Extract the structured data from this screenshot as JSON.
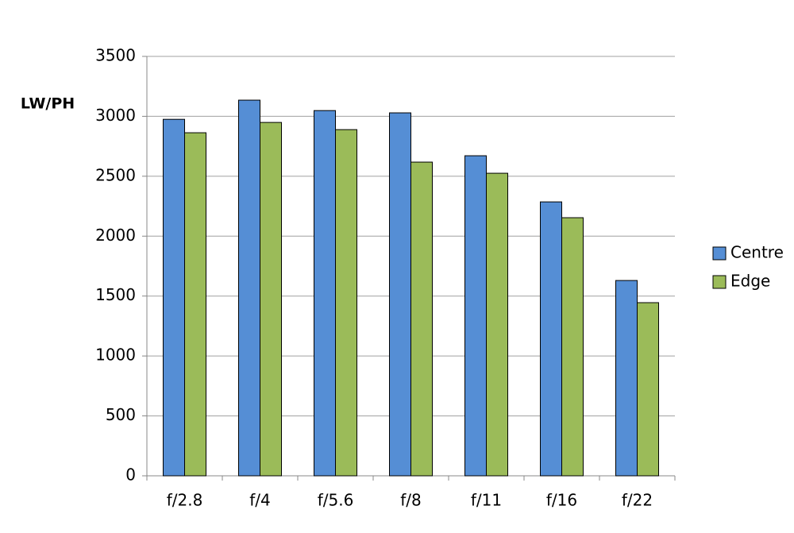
{
  "chart_data": {
    "type": "bar",
    "y_label": "LW/PH",
    "categories": [
      "f/2.8",
      "f/4",
      "f/5.6",
      "f/8",
      "f/11",
      "f/16",
      "f/22"
    ],
    "series": [
      {
        "name": "Centre",
        "color": "#558ed5",
        "values": [
          2975,
          3135,
          3048,
          3029,
          2671,
          2286,
          1630
        ]
      },
      {
        "name": "Edge",
        "color": "#9bbb59",
        "values": [
          2863,
          2949,
          2889,
          2618,
          2525,
          2154,
          1445
        ]
      }
    ],
    "ylim": [
      0,
      3500
    ],
    "yticks": [
      0,
      500,
      1000,
      1500,
      2000,
      2500,
      3000,
      3500
    ],
    "grid": true,
    "legend": "right"
  }
}
